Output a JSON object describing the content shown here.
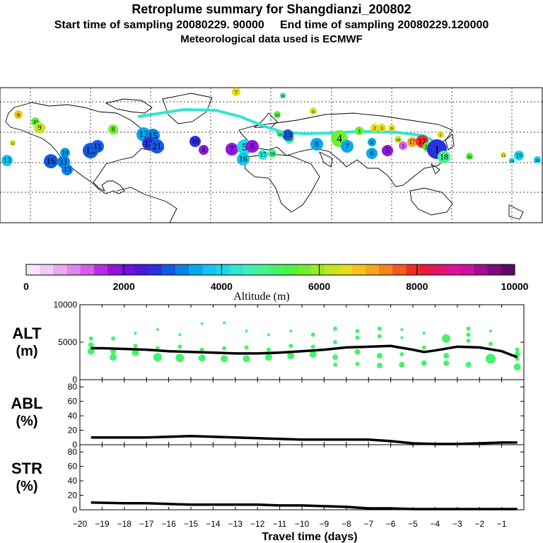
{
  "title": {
    "line1": "Retroplume summary for Shangdianzi_200802",
    "line2": "Start time of sampling 20080229. 90000     End time of sampling 20080229.120000",
    "line3": "Meteorological data used is ECMWF"
  },
  "colorbar": {
    "label": "Altitude (m)",
    "ticks": [
      "0",
      "2000",
      "4000",
      "6000",
      "8000",
      "10000"
    ],
    "colors": [
      "#fbe6fb",
      "#f4c9f6",
      "#eaa9f0",
      "#df85eb",
      "#d45ee8",
      "#b82ee2",
      "#9214de",
      "#6e10da",
      "#4a17d9",
      "#2a31de",
      "#1458e2",
      "#0c82e8",
      "#0aa7ee",
      "#0fc6f0",
      "#1dd6e7",
      "#2ee6d4",
      "#3ef0b6",
      "#43f48e",
      "#45f466",
      "#4ff240",
      "#6ef02f",
      "#97ec22",
      "#c3e61c",
      "#e6dc1a",
      "#f4c418",
      "#f6a41a",
      "#f6821c",
      "#f35a1e",
      "#ee2e24",
      "#e81842",
      "#e4146a",
      "#e01294",
      "#cc10a2",
      "#a40c94",
      "#800a7a",
      "#5e0a62"
    ]
  },
  "map": {
    "markers": [
      {
        "label": "7",
        "c": "#e6dc1a"
      },
      {
        "label": "18",
        "c": "#43f48e"
      },
      {
        "label": "8",
        "c": "#f4c418"
      },
      {
        "label": "19",
        "c": "#4ff240"
      },
      {
        "label": "6",
        "c": "#c3e61c"
      },
      {
        "label": "10",
        "c": "#4ff240"
      },
      {
        "label": "9",
        "c": "#c3e61c"
      },
      {
        "label": "11",
        "c": "#e6dc1a"
      },
      {
        "label": "13",
        "c": "#0fc6f0"
      },
      {
        "label": "16",
        "c": "#1458e2"
      },
      {
        "label": "10",
        "c": "#0aa7ee"
      },
      {
        "label": "11",
        "c": "#0c82e8"
      },
      {
        "label": "13",
        "c": "#0c82e8"
      },
      {
        "label": "13",
        "c": "#1458e2"
      },
      {
        "label": "11",
        "c": "#1458e2"
      },
      {
        "label": "8",
        "c": "#6ef02f"
      },
      {
        "label": "13",
        "c": "#0aa7ee"
      },
      {
        "label": "15",
        "c": "#0c82e8"
      },
      {
        "label": "12",
        "c": "#2a31de"
      },
      {
        "label": "21",
        "c": "#1458e2"
      },
      {
        "label": "10",
        "c": "#2a31de"
      },
      {
        "label": "8",
        "c": "#9214de"
      },
      {
        "label": "7",
        "c": "#9214de"
      },
      {
        "label": "5",
        "c": "#1dd6e7"
      },
      {
        "label": "6",
        "c": "#9214de"
      },
      {
        "label": "16",
        "c": "#0fc6f0"
      },
      {
        "label": "17",
        "c": "#2ee6d4"
      },
      {
        "label": "18",
        "c": "#43f48e"
      },
      {
        "label": "15",
        "c": "#43f48e"
      },
      {
        "label": "13",
        "c": "#1458e2"
      },
      {
        "label": "8",
        "c": "#0aa7ee"
      },
      {
        "label": "4",
        "c": "#6ef02f"
      },
      {
        "label": "7",
        "c": "#0aa7ee"
      },
      {
        "label": "3",
        "c": "#6ef02f"
      },
      {
        "label": "2",
        "c": "#e6dc1a"
      },
      {
        "label": "3",
        "c": "#e6dc1a"
      },
      {
        "label": "9",
        "c": "#e6dc1a"
      },
      {
        "label": "8",
        "c": "#0aa7ee"
      },
      {
        "label": "6",
        "c": "#0aa7ee"
      },
      {
        "label": "5",
        "c": "#9214de"
      },
      {
        "label": "3",
        "c": "#d45ee8"
      },
      {
        "label": "19",
        "c": "#c3e61c"
      },
      {
        "label": "17",
        "c": "#f6a41a"
      },
      {
        "label": "12",
        "c": "#ee2e24"
      },
      {
        "label": "18",
        "c": "#4ff240"
      },
      {
        "label": "1",
        "c": "#2a31de"
      },
      {
        "label": "1",
        "c": "#e6dc1a"
      },
      {
        "label": "18",
        "c": "#43f48e"
      },
      {
        "label": "13",
        "c": "#e6dc1a"
      },
      {
        "label": "14",
        "c": "#1dd6e7"
      },
      {
        "label": "19",
        "c": "#1dd6e7"
      },
      {
        "label": "16",
        "c": "#0fc6f0"
      },
      {
        "label": "16",
        "c": "#43f48e"
      },
      {
        "label": "16",
        "c": "#4ff240"
      }
    ]
  },
  "chart_data": {
    "type": "line",
    "xlabel": "Travel time (days)",
    "x_ticks": [
      "−20",
      "−19",
      "−18",
      "−17",
      "−16",
      "−15",
      "−14",
      "−13",
      "−12",
      "−11",
      "−10",
      "−9",
      "−8",
      "−7",
      "−6",
      "−5",
      "−4",
      "−3",
      "−2",
      "−1"
    ],
    "xlim": [
      -20,
      0
    ],
    "panels": [
      {
        "name": "ALT",
        "unit": "(m)",
        "ylim": [
          0,
          10000
        ],
        "y_ticks": [
          "10000",
          "5000",
          "0"
        ],
        "line_x": [
          -19.5,
          -19,
          -18,
          -17,
          -16,
          -15,
          -14,
          -13,
          -12,
          -11,
          -10,
          -9,
          -8,
          -7,
          -6,
          -5,
          -4.5,
          -4,
          -3,
          -2,
          -1,
          -0.3
        ],
        "line_y": [
          4200,
          4200,
          4100,
          4000,
          3800,
          3700,
          3600,
          3500,
          3500,
          3600,
          3800,
          4000,
          4300,
          4400,
          4500,
          4000,
          3700,
          3900,
          4400,
          4300,
          3800,
          3000
        ],
        "points": [
          {
            "x": -19.5,
            "y": 5500,
            "s": 3
          },
          {
            "x": -19.5,
            "y": 4600,
            "s": 4
          },
          {
            "x": -19.5,
            "y": 3800,
            "s": 5
          },
          {
            "x": -18.5,
            "y": 5500,
            "s": 3
          },
          {
            "x": -18.5,
            "y": 3800,
            "s": 4
          },
          {
            "x": -18.5,
            "y": 3000,
            "s": 5
          },
          {
            "x": -17.5,
            "y": 6200,
            "s": 2
          },
          {
            "x": -17.5,
            "y": 4500,
            "s": 3
          },
          {
            "x": -17.5,
            "y": 3600,
            "s": 5
          },
          {
            "x": -16.5,
            "y": 6700,
            "s": 2
          },
          {
            "x": -16.5,
            "y": 4200,
            "s": 3
          },
          {
            "x": -16.5,
            "y": 3000,
            "s": 6
          },
          {
            "x": -15.5,
            "y": 6000,
            "s": 2
          },
          {
            "x": -15.5,
            "y": 4400,
            "s": 3
          },
          {
            "x": -15.5,
            "y": 2900,
            "s": 6
          },
          {
            "x": -14.5,
            "y": 7500,
            "s": 2
          },
          {
            "x": -14.5,
            "y": 4000,
            "s": 3
          },
          {
            "x": -14.5,
            "y": 2900,
            "s": 5
          },
          {
            "x": -13.5,
            "y": 7600,
            "s": 2
          },
          {
            "x": -13.5,
            "y": 4200,
            "s": 3
          },
          {
            "x": -13.5,
            "y": 2800,
            "s": 5
          },
          {
            "x": -12.5,
            "y": 6500,
            "s": 2
          },
          {
            "x": -12.5,
            "y": 4300,
            "s": 3
          },
          {
            "x": -12.5,
            "y": 2800,
            "s": 5
          },
          {
            "x": -11.5,
            "y": 6000,
            "s": 2
          },
          {
            "x": -11.5,
            "y": 4000,
            "s": 3
          },
          {
            "x": -11.5,
            "y": 3000,
            "s": 5
          },
          {
            "x": -10.5,
            "y": 6500,
            "s": 2
          },
          {
            "x": -10.5,
            "y": 4500,
            "s": 3
          },
          {
            "x": -10.5,
            "y": 3200,
            "s": 5
          },
          {
            "x": -9.5,
            "y": 6000,
            "s": 3
          },
          {
            "x": -9.5,
            "y": 4400,
            "s": 3
          },
          {
            "x": -9.5,
            "y": 3400,
            "s": 5
          },
          {
            "x": -8.5,
            "y": 6800,
            "s": 3
          },
          {
            "x": -8.5,
            "y": 5000,
            "s": 3
          },
          {
            "x": -8.5,
            "y": 3000,
            "s": 4
          },
          {
            "x": -8.5,
            "y": 2000,
            "s": 3
          },
          {
            "x": -7.5,
            "y": 6500,
            "s": 3
          },
          {
            "x": -7.5,
            "y": 5600,
            "s": 3
          },
          {
            "x": -7.5,
            "y": 3700,
            "s": 4
          },
          {
            "x": -7.5,
            "y": 2100,
            "s": 3
          },
          {
            "x": -6.5,
            "y": 6800,
            "s": 3
          },
          {
            "x": -6.5,
            "y": 5800,
            "s": 3
          },
          {
            "x": -6.5,
            "y": 3200,
            "s": 4
          },
          {
            "x": -6.5,
            "y": 1900,
            "s": 4
          },
          {
            "x": -5.5,
            "y": 6700,
            "s": 2
          },
          {
            "x": -5.5,
            "y": 5600,
            "s": 2
          },
          {
            "x": -5.5,
            "y": 3400,
            "s": 3
          },
          {
            "x": -5.5,
            "y": 2000,
            "s": 4
          },
          {
            "x": -4.5,
            "y": 6200,
            "s": 2
          },
          {
            "x": -4.5,
            "y": 4300,
            "s": 3
          },
          {
            "x": -4.5,
            "y": 2200,
            "s": 4
          },
          {
            "x": -3.5,
            "y": 5500,
            "s": 6
          },
          {
            "x": -3.5,
            "y": 3200,
            "s": 4
          },
          {
            "x": -3.5,
            "y": 2200,
            "s": 4
          },
          {
            "x": -2.5,
            "y": 6800,
            "s": 3
          },
          {
            "x": -2.5,
            "y": 6000,
            "s": 3
          },
          {
            "x": -2.5,
            "y": 5200,
            "s": 3
          },
          {
            "x": -2.5,
            "y": 2000,
            "s": 4
          },
          {
            "x": -1.5,
            "y": 6500,
            "s": 2
          },
          {
            "x": -1.5,
            "y": 4800,
            "s": 3
          },
          {
            "x": -1.5,
            "y": 2800,
            "s": 7
          },
          {
            "x": -0.3,
            "y": 4000,
            "s": 3
          },
          {
            "x": -0.3,
            "y": 3400,
            "s": 4
          },
          {
            "x": -0.3,
            "y": 2800,
            "s": 3
          },
          {
            "x": -0.3,
            "y": 1700,
            "s": 5
          }
        ]
      },
      {
        "name": "ABL",
        "unit": "(%)",
        "ylim": [
          0,
          90
        ],
        "y_ticks": [
          "80",
          "60",
          "40",
          "20",
          "0"
        ],
        "line_x": [
          -19.5,
          -18,
          -17,
          -16,
          -15,
          -14,
          -13,
          -12,
          -11,
          -10,
          -9,
          -8,
          -7,
          -6,
          -5,
          -4,
          -3,
          -2,
          -1,
          -0.3
        ],
        "line_y": [
          10,
          10,
          10,
          11,
          12,
          11,
          10,
          9,
          8,
          7,
          7,
          7,
          7,
          5,
          2,
          1,
          1,
          2,
          3,
          3
        ],
        "points": []
      },
      {
        "name": "STR",
        "unit": "(%)",
        "ylim": [
          0,
          90
        ],
        "y_ticks": [
          "80",
          "60",
          "40",
          "20",
          "0"
        ],
        "line_x": [
          -19.5,
          -18,
          -17,
          -16,
          -15,
          -14,
          -13,
          -12,
          -11,
          -10,
          -9,
          -8,
          -7,
          -6,
          -5,
          -4,
          -3,
          -2,
          -1,
          -0.3
        ],
        "line_y": [
          10,
          9,
          9,
          8,
          7,
          7,
          7,
          7,
          6,
          6,
          5,
          4,
          2,
          2,
          1,
          1,
          1,
          1,
          1,
          1
        ],
        "points": []
      }
    ]
  }
}
